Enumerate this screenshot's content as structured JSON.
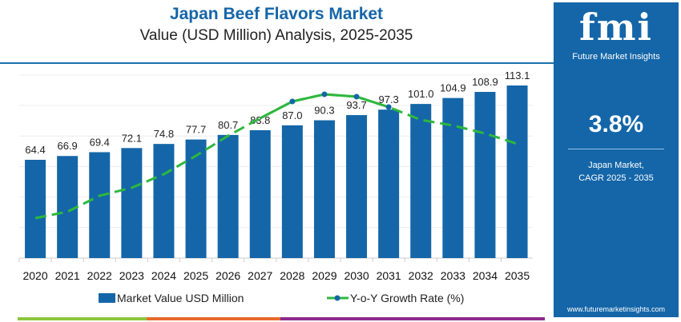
{
  "header": {
    "title": "Japan Beef Flavors Market",
    "subtitle": "Value (USD Million) Analysis, 2025-2035"
  },
  "sidebar": {
    "logo": "fmi",
    "brand": "Future Market Insights",
    "cagr": "3.8%",
    "cagr_label_1": "Japan Market,",
    "cagr_label_2": "CAGR 2025 - 2035",
    "url": "www.futuremarketinsights.com"
  },
  "colors": {
    "bar": "#1466a8",
    "line": "#2db83d",
    "marker": "#1466a8",
    "accent_green": "#8dc63f",
    "accent_orange": "#e8692d",
    "accent_purple": "#8e2a8e"
  },
  "chart_data": {
    "type": "bar",
    "categories": [
      "2020",
      "2021",
      "2022",
      "2023",
      "2024",
      "2025",
      "2026",
      "2027",
      "2028",
      "2029",
      "2030",
      "2031",
      "2032",
      "2033",
      "2034",
      "2035"
    ],
    "ylim": [
      0,
      120
    ],
    "grid": true,
    "legend": "bottom",
    "series": [
      {
        "name": "Market Value USD Million",
        "type": "bar",
        "values": [
          64.4,
          66.9,
          69.4,
          72.1,
          74.8,
          77.7,
          80.7,
          83.8,
          87.0,
          90.3,
          93.7,
          97.3,
          101.0,
          104.9,
          108.9,
          113.1
        ],
        "labels": [
          "64.4",
          "66.9",
          "69.4",
          "72.1",
          "74.8",
          "77.7",
          "80.7",
          "83.8",
          "87.0",
          "90.3",
          "93.7",
          "97.3",
          "101.0",
          "104.9",
          "108.9",
          "113.1"
        ]
      },
      {
        "name": "Y-o-Y Growth Rate (%)",
        "type": "line",
        "values": [
          1.0,
          1.16,
          1.56,
          1.76,
          2.1,
          2.56,
          3.06,
          3.5,
          3.92,
          4.1,
          4.04,
          3.78,
          3.46,
          3.32,
          3.12,
          2.86
        ]
      }
    ]
  }
}
